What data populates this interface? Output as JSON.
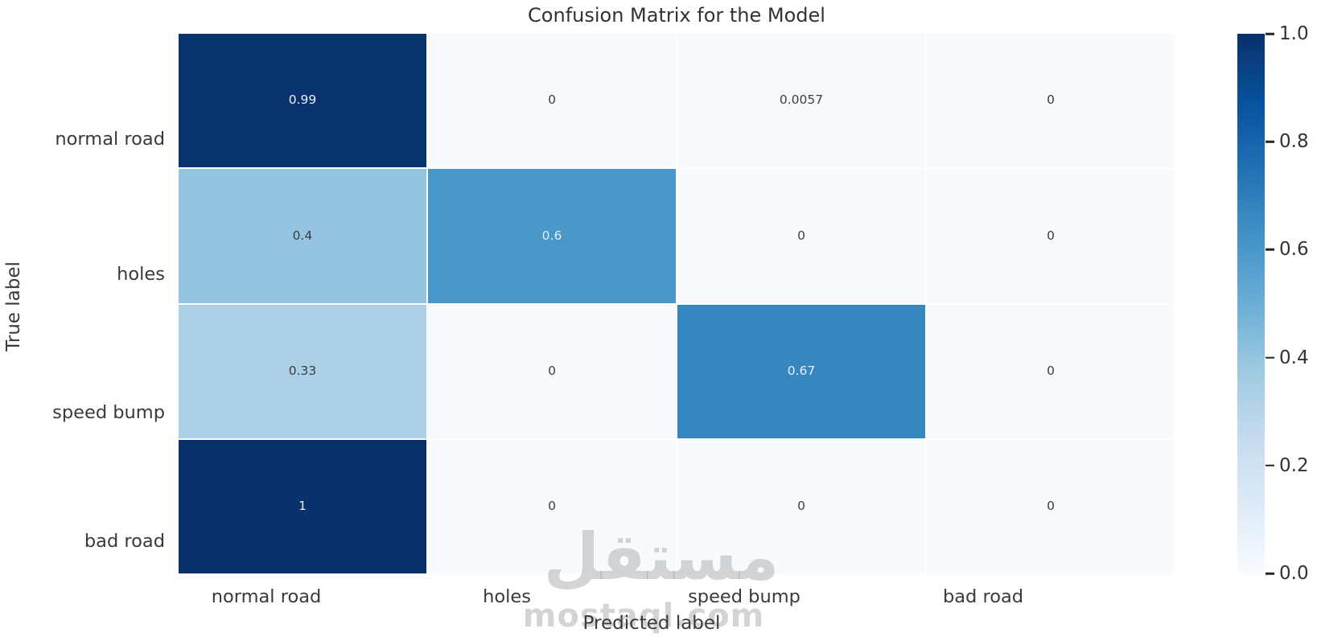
{
  "chart_data": {
    "type": "heatmap",
    "title": "Confusion Matrix for the Model",
    "xlabel": "Predicted label",
    "ylabel": "True label",
    "x_categories": [
      "normal road",
      "holes",
      "speed bump",
      "bad road"
    ],
    "y_categories": [
      "normal road",
      "holes",
      "speed bump",
      "bad road"
    ],
    "values": [
      [
        0.99,
        0,
        0.0057,
        0
      ],
      [
        0.4,
        0.6,
        0,
        0
      ],
      [
        0.33,
        0,
        0.67,
        0
      ],
      [
        1,
        0,
        0,
        0
      ]
    ],
    "cell_labels": [
      [
        "0.99",
        "0",
        "0.0057",
        "0"
      ],
      [
        "0.4",
        "0.6",
        "0",
        "0"
      ],
      [
        "0.33",
        "0",
        "0.67",
        "0"
      ],
      [
        "1",
        "0",
        "0",
        "0"
      ]
    ],
    "colormap": "Blues",
    "colorbar": {
      "range": [
        0,
        1
      ],
      "ticks": [
        "1.0",
        "0.8",
        "0.6",
        "0.4",
        "0.2",
        "0.0"
      ],
      "position": "right"
    },
    "grid": false,
    "legend": "none"
  },
  "colors": {
    "cmap_low": "#f7fbff",
    "cmap_high": "#08306b",
    "annot_dark_text": "#3d3d3d",
    "annot_light_text": "#e8eef6",
    "axis_text": "#3a3a3a",
    "background": "#ffffff"
  },
  "watermark": {
    "arabic": "مستقل",
    "latin": "mostaql.com"
  }
}
